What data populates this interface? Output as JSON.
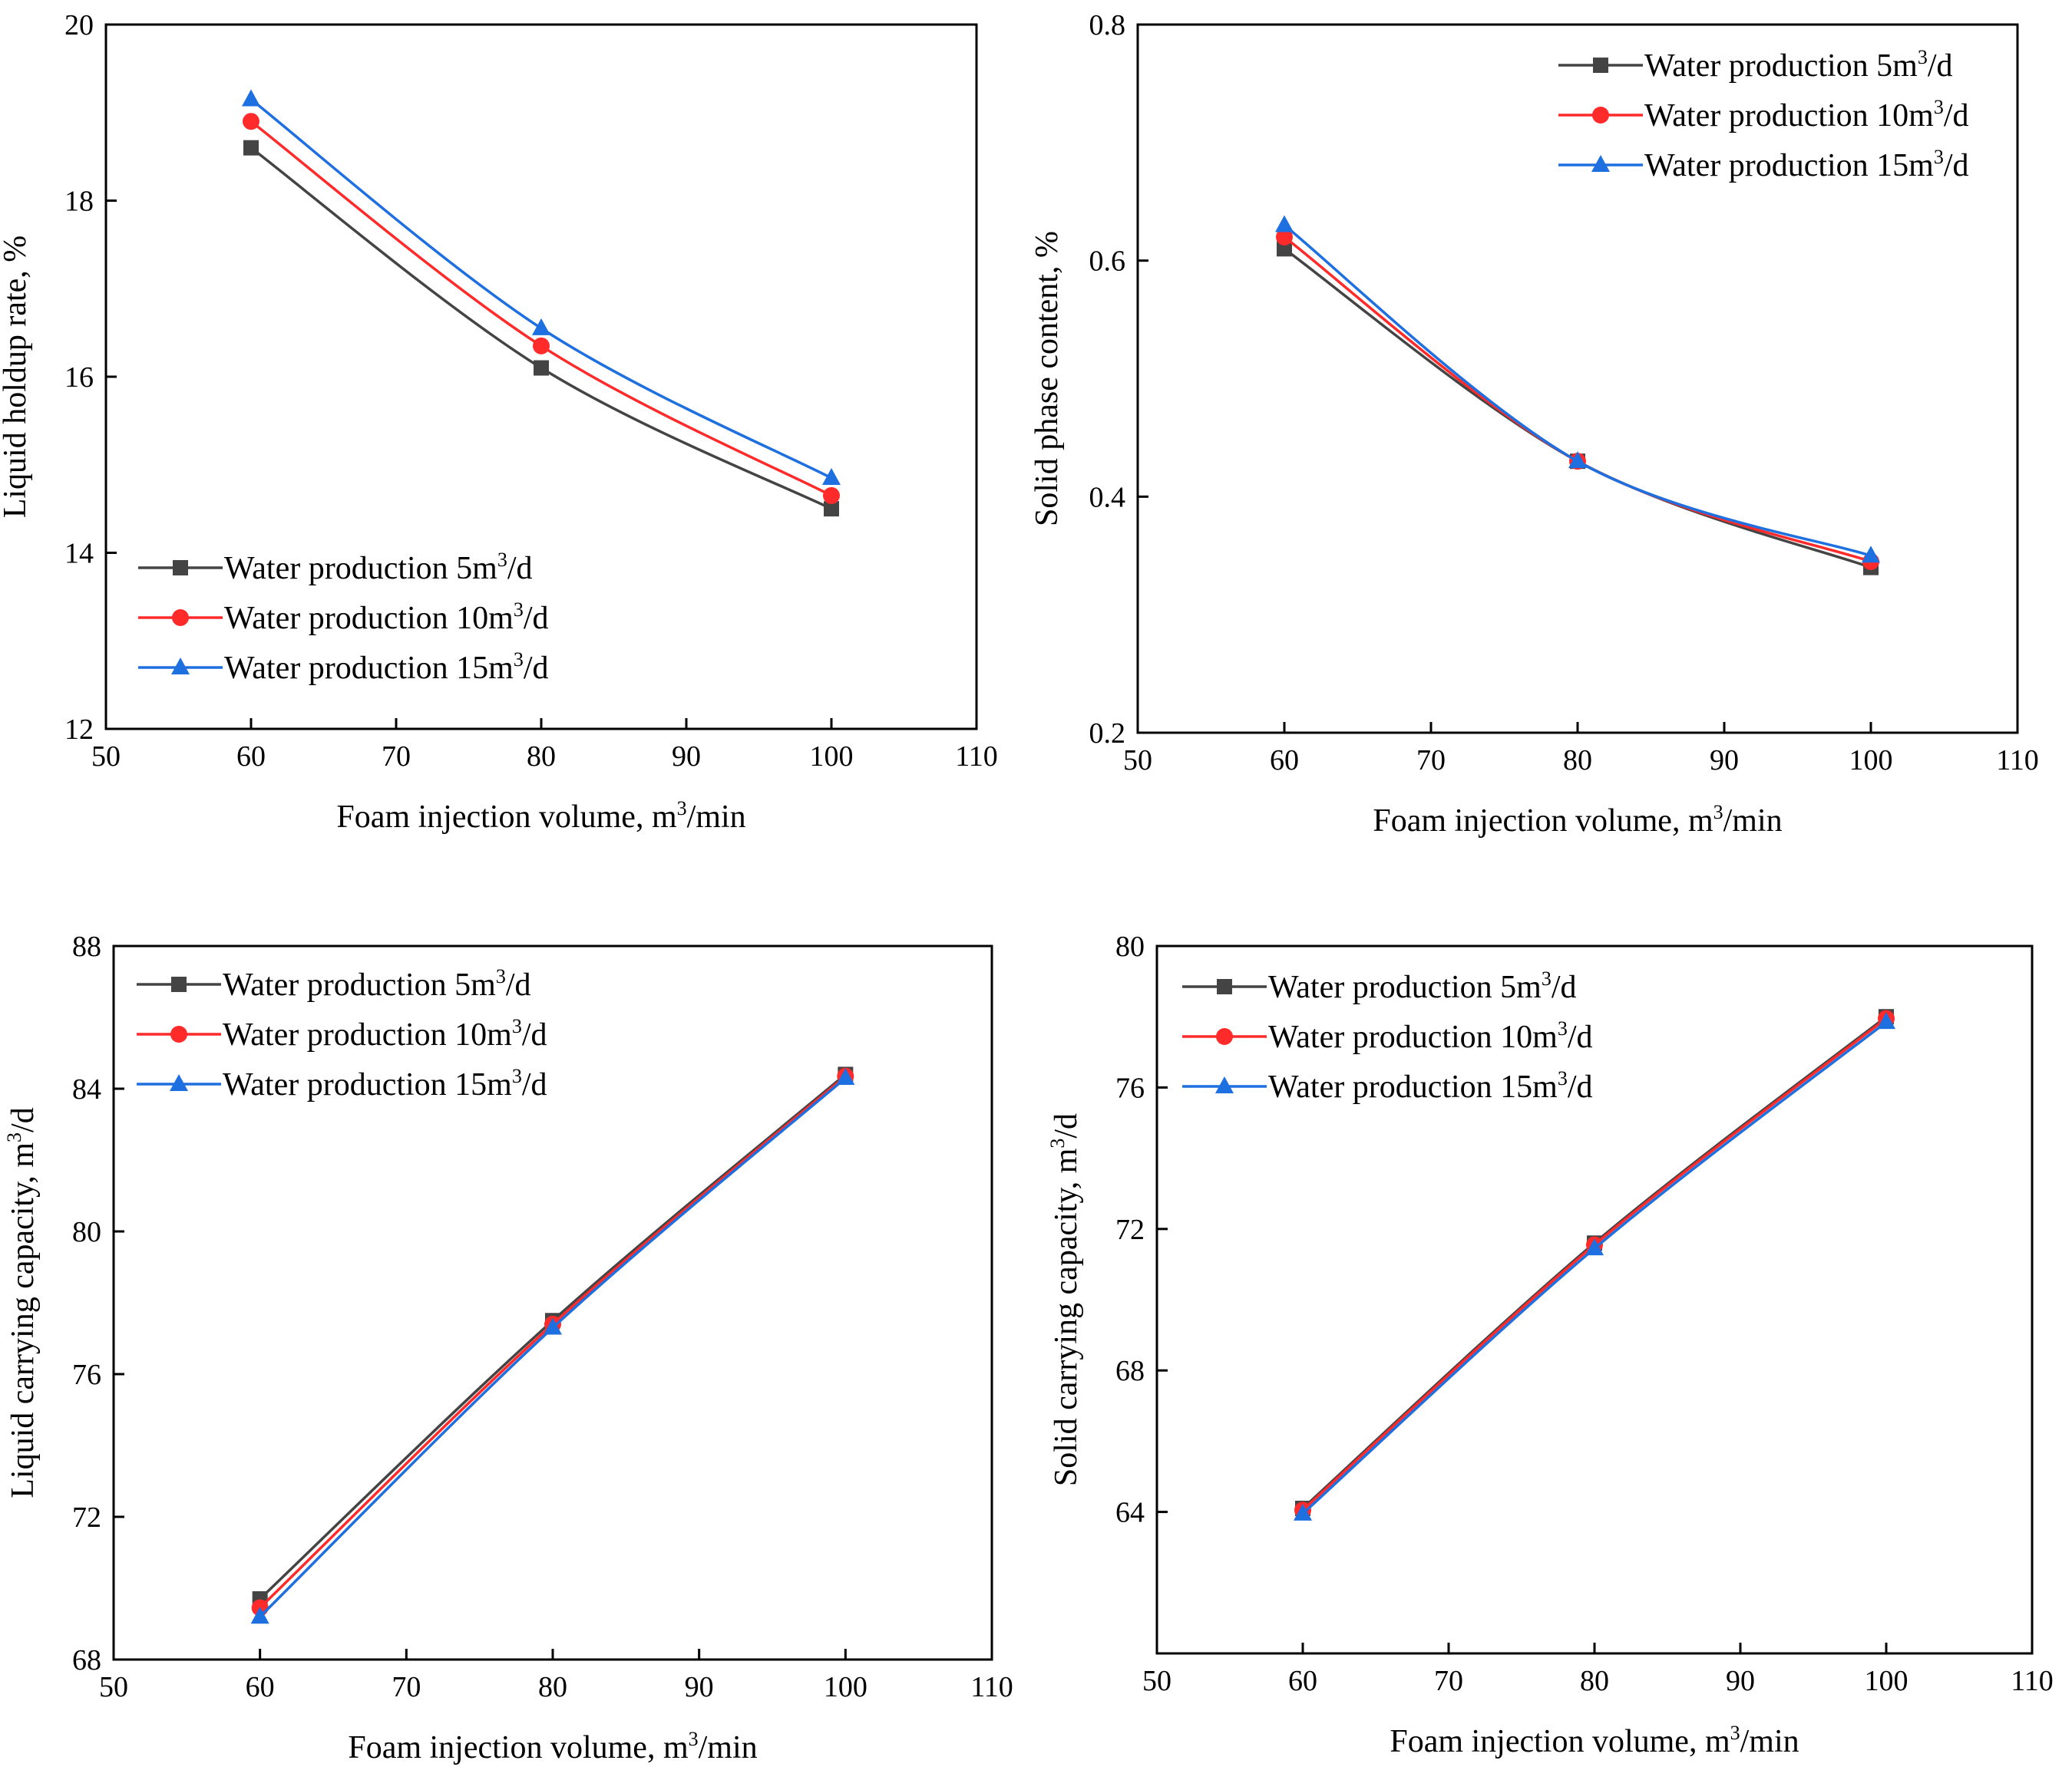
{
  "colors": {
    "Water production 5m3/d": "#444444",
    "Water production 10m3/d": "#ff2a2a",
    "Water production 15m3/d": "#1e6fe0"
  },
  "chart_data": [
    {
      "type": "line",
      "xlabel": "Foam injection volume, m³/min",
      "ylabel": "Liquid holdup rate, %",
      "xlim": [
        50,
        110
      ],
      "ylim": [
        12,
        20
      ],
      "xticks": [
        50,
        60,
        70,
        80,
        90,
        100,
        110
      ],
      "yticks": [
        12,
        14,
        16,
        18,
        20
      ],
      "legend": "bottom-left",
      "grid": false,
      "x": [
        60,
        80,
        100
      ],
      "series": [
        {
          "name": "Water production 5m³/d",
          "marker": "square",
          "values": [
            18.6,
            16.1,
            14.5
          ]
        },
        {
          "name": "Water production 10m³/d",
          "marker": "circle",
          "values": [
            18.9,
            16.35,
            14.65
          ]
        },
        {
          "name": "Water production 15m³/d",
          "marker": "triangle",
          "values": [
            19.15,
            16.55,
            14.85
          ]
        }
      ]
    },
    {
      "type": "line",
      "xlabel": "Foam injection volume, m³/min",
      "ylabel": "Solid phase content, %",
      "xlim": [
        50,
        110
      ],
      "ylim": [
        0.2,
        0.8
      ],
      "xticks": [
        50,
        60,
        70,
        80,
        90,
        100,
        110
      ],
      "yticks": [
        0.2,
        0.4,
        0.6,
        0.8
      ],
      "legend": "top-right",
      "grid": false,
      "x": [
        60,
        80,
        100
      ],
      "series": [
        {
          "name": "Water production 5m³/d",
          "marker": "square",
          "values": [
            0.61,
            0.43,
            0.34
          ]
        },
        {
          "name": "Water production 10m³/d",
          "marker": "circle",
          "values": [
            0.62,
            0.43,
            0.345
          ]
        },
        {
          "name": "Water production 15m³/d",
          "marker": "triangle",
          "values": [
            0.63,
            0.43,
            0.35
          ]
        }
      ]
    },
    {
      "type": "line",
      "xlabel": "Foam injection volume, m³/min",
      "ylabel": "Liquid carrying capacity, m³/d",
      "xlim": [
        50,
        110
      ],
      "ylim": [
        68,
        88
      ],
      "xticks": [
        50,
        60,
        70,
        80,
        90,
        100,
        110
      ],
      "yticks": [
        68,
        72,
        76,
        80,
        84,
        88
      ],
      "legend": "top-left",
      "grid": false,
      "x": [
        60,
        80,
        100
      ],
      "series": [
        {
          "name": "Water production 5m³/d",
          "marker": "square",
          "values": [
            69.7,
            77.5,
            84.4
          ]
        },
        {
          "name": "Water production 10m³/d",
          "marker": "circle",
          "values": [
            69.45,
            77.4,
            84.35
          ]
        },
        {
          "name": "Water production 15m³/d",
          "marker": "triangle",
          "values": [
            69.2,
            77.3,
            84.3
          ]
        }
      ]
    },
    {
      "type": "line",
      "xlabel": "Foam injection volume, m³/min",
      "ylabel": "Solid carrying capacity, m³/d",
      "xlim": [
        50,
        110
      ],
      "ylim": [
        60,
        80
      ],
      "xticks": [
        50,
        60,
        70,
        80,
        90,
        100,
        110
      ],
      "yticks": [
        64,
        68,
        72,
        76,
        80
      ],
      "legend": "top-left",
      "grid": false,
      "x": [
        60,
        80,
        100
      ],
      "series": [
        {
          "name": "Water production 5m³/d",
          "marker": "square",
          "values": [
            64.1,
            71.6,
            78.0
          ]
        },
        {
          "name": "Water production 10m³/d",
          "marker": "circle",
          "values": [
            64.05,
            71.55,
            77.95
          ]
        },
        {
          "name": "Water production 15m³/d",
          "marker": "triangle",
          "values": [
            63.95,
            71.45,
            77.85
          ]
        }
      ]
    }
  ]
}
